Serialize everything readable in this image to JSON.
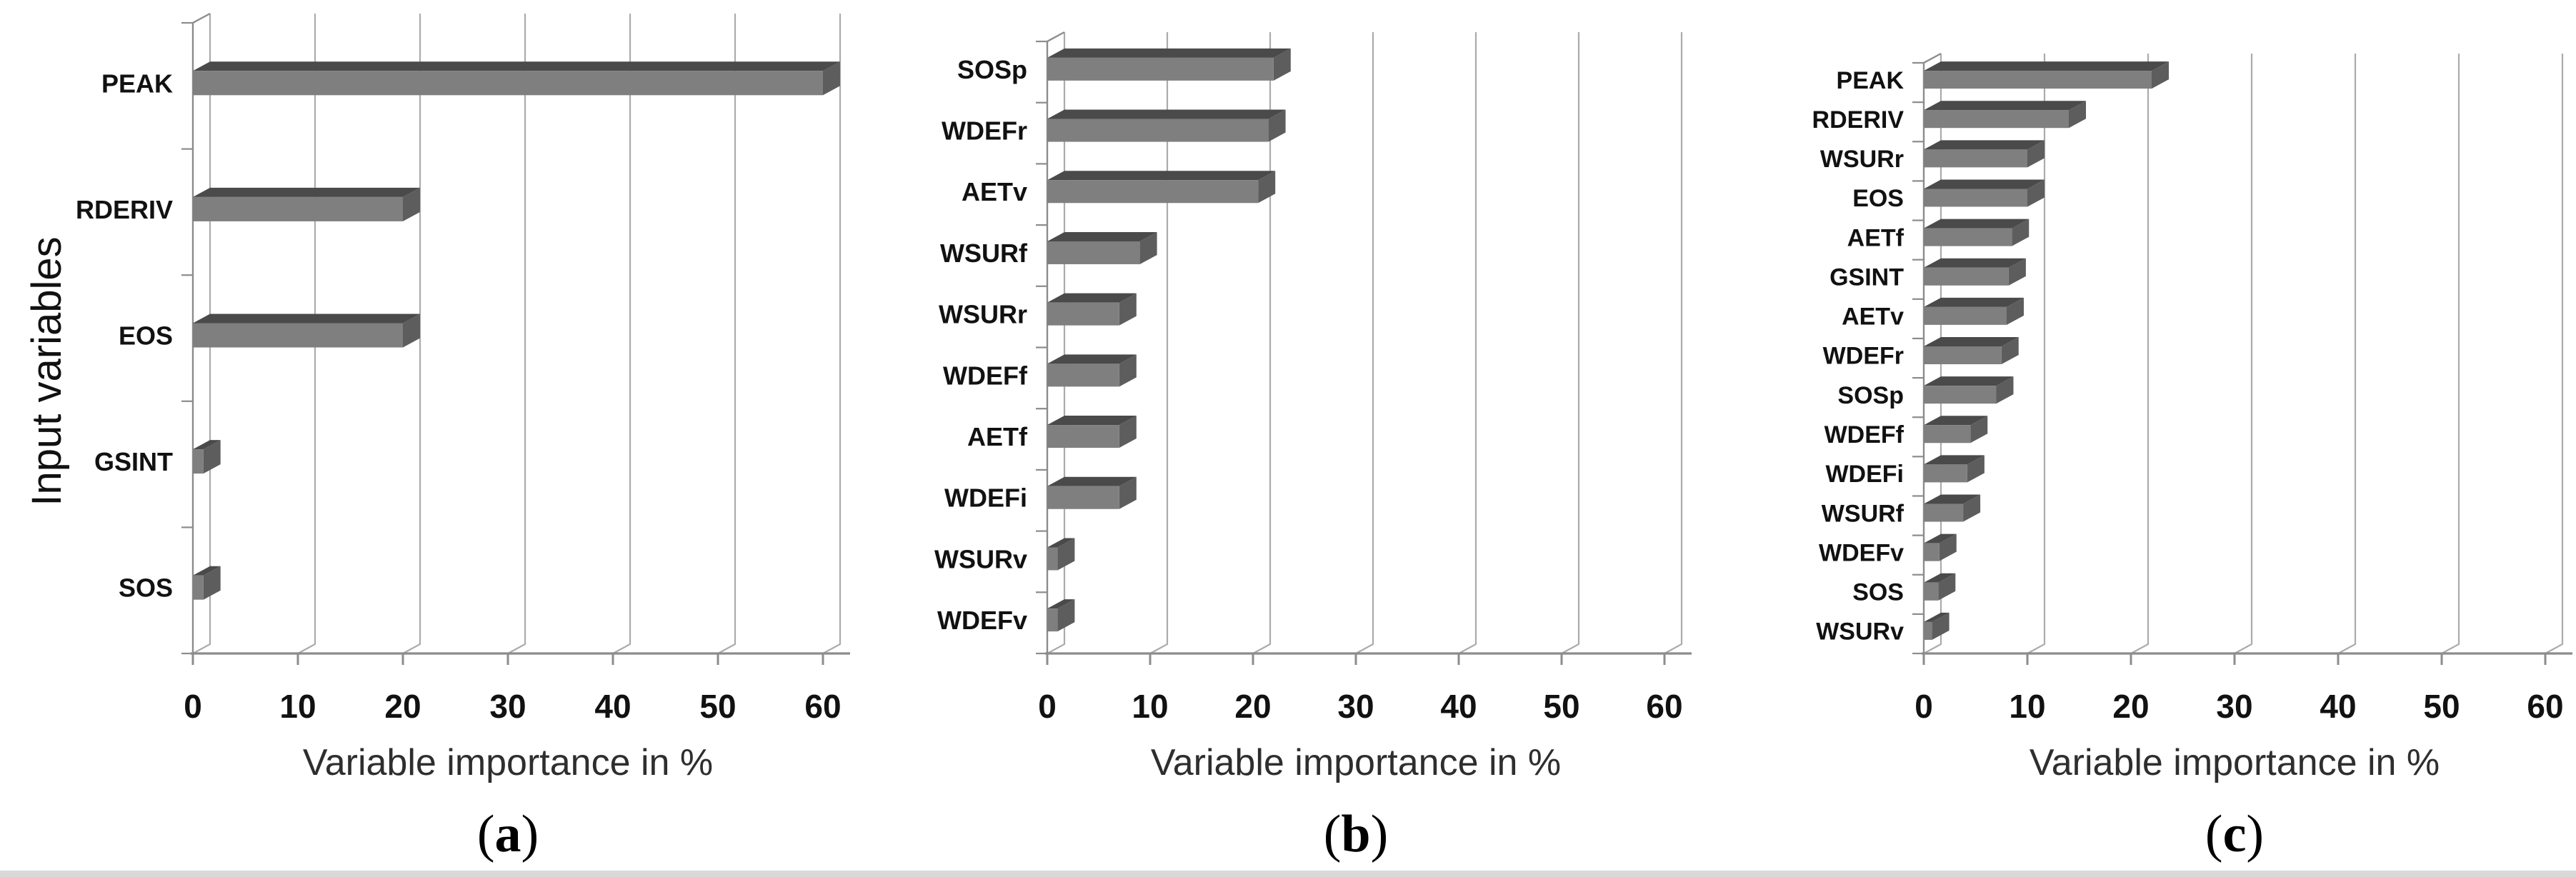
{
  "figure": {
    "background": "#ffffff",
    "bottom_rule_color": "#d9d9d9"
  },
  "style": {
    "bar_front": "#7f7f7f",
    "bar_top": "#4a4a4a",
    "bar_end": "#5d5d5d",
    "gridline": "#ababab",
    "axis": "#8c8c8c",
    "label_color": "#111111",
    "title_color": "#2e2e2e",
    "caption_color": "#000000"
  },
  "chart_data": [
    {
      "type": "bar",
      "orientation": "horizontal",
      "caption": "(a)",
      "xlabel": "Variable importance in %",
      "ylabel": "Input variables",
      "xlim": [
        0,
        60
      ],
      "xticks": [
        0,
        10,
        20,
        30,
        40,
        50,
        60
      ],
      "grid": true,
      "legend": "none",
      "categories": [
        "PEAK",
        "RDERIV",
        "EOS",
        "GSINT",
        "SOS"
      ],
      "values": [
        60,
        20,
        20,
        1,
        1
      ]
    },
    {
      "type": "bar",
      "orientation": "horizontal",
      "caption": "(b)",
      "xlabel": "Variable importance in %",
      "ylabel": "",
      "xlim": [
        0,
        60
      ],
      "xticks": [
        0,
        10,
        20,
        30,
        40,
        50,
        60
      ],
      "grid": true,
      "legend": "none",
      "categories": [
        "SOSp",
        "WDEFr",
        "AETv",
        "WSURf",
        "WSURr",
        "WDEFf",
        "AETf",
        "WDEFi",
        "WSURv",
        "WDEFv"
      ],
      "values": [
        22,
        21.5,
        20.5,
        9,
        7,
        7,
        7,
        7,
        1,
        1
      ]
    },
    {
      "type": "bar",
      "orientation": "horizontal",
      "caption": "(c)",
      "xlabel": "Variable importance in %",
      "ylabel": "",
      "xlim": [
        0,
        60
      ],
      "xticks": [
        0,
        10,
        20,
        30,
        40,
        50,
        60
      ],
      "grid": true,
      "legend": "none",
      "categories": [
        "PEAK",
        "RDERIV",
        "WSURr",
        "EOS",
        "AETf",
        "GSINT",
        "AETv",
        "WDEFr",
        "SOSp",
        "WDEFf",
        "WDEFi",
        "WSURf",
        "WDEFv",
        "SOS",
        "WSURv"
      ],
      "values": [
        22,
        14,
        10,
        10,
        8.5,
        8.2,
        8,
        7.5,
        7,
        4.5,
        4.2,
        3.8,
        1.5,
        1.4,
        0.8
      ]
    }
  ]
}
